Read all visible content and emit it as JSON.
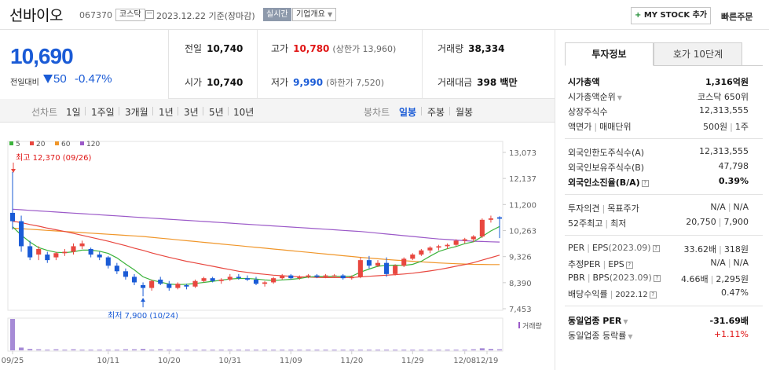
{
  "header": {
    "name": "선바이오",
    "code": "067370",
    "market": "코스닥",
    "date": "2023.12.22 기준(장마감)",
    "live_badge": "실시간",
    "overview_label": "기업개요",
    "mystock_label": "MY STOCK 추가",
    "quick_order": "빠른주문"
  },
  "price": {
    "current": "10,690",
    "diff_label": "전일대비",
    "diff": "50",
    "rate": "-0.47%",
    "color": "#1a5bd6"
  },
  "summary": {
    "prev_label": "전일",
    "prev": "10,740",
    "open_label": "시가",
    "open": "10,740",
    "high_label": "고가",
    "high": "10,780",
    "upper_limit": "(상한가 13,960)",
    "low_label": "저가",
    "low": "9,990",
    "lower_limit": "(하한가 7,520)",
    "volume_label": "거래량",
    "volume": "38,334",
    "amount_label": "거래대금",
    "amount": "398 백만"
  },
  "periods": {
    "line_label": "선차트",
    "line_items": [
      "1일",
      "1주일",
      "3개월",
      "1년",
      "3년",
      "5년",
      "10년"
    ],
    "candle_label": "봉차트",
    "candle_items": [
      "일봉",
      "주봉",
      "월봉"
    ],
    "active_candle": "일봉"
  },
  "side": {
    "tabs": [
      "투자정보",
      "호가 10단계"
    ],
    "market_cap_label": "시가총액",
    "market_cap": "1,316억원",
    "cap_rank_label": "시가총액순위",
    "cap_rank": "코스닥 650위",
    "shares_label": "상장주식수",
    "shares": "12,313,555",
    "par_label": "액면가",
    "unit_label": "매매단위",
    "par": "500원",
    "unit": "1주",
    "foreign_limit_label": "외국인한도주식수(A)",
    "foreign_limit": "12,313,555",
    "foreign_hold_label": "외국인보유주식수(B)",
    "foreign_hold": "47,798",
    "foreign_rate_label": "외국인소진율(B/A)",
    "foreign_rate": "0.39%",
    "opinion_label": "투자의견",
    "target_label": "목표주가",
    "opinion": "N/A",
    "target": "N/A",
    "w52_label": "52주최고",
    "w52_low_label": "최저",
    "w52_high": "20,750",
    "w52_low": "7,900",
    "per_label": "PER",
    "eps_label": "EPS",
    "per_period": "(2023.09)",
    "per": "33.62배",
    "eps": "318원",
    "est_per_label": "추정PER",
    "est_eps_label": "EPS",
    "est_per": "N/A",
    "est_eps": "N/A",
    "pbr_label": "PBR",
    "bps_label": "BPS",
    "pbr_period": "(2023.09)",
    "pbr": "4.66배",
    "bps": "2,295원",
    "div_label": "배당수익률",
    "div_period": "2022.12",
    "div": "0.47%",
    "ind_per_label": "동일업종 PER",
    "ind_per": "-31.69배",
    "ind_rate_label": "동일업종 등락률",
    "ind_rate": "+1.11%"
  },
  "chart_data": {
    "type": "candlestick",
    "legend": [
      {
        "name": "5",
        "color": "#3cb33c"
      },
      {
        "name": "20",
        "color": "#e8473f"
      },
      {
        "name": "60",
        "color": "#f0962a"
      },
      {
        "name": "120",
        "color": "#9b59c8"
      }
    ],
    "y_ticks": [
      "13,073",
      "12,137",
      "11,200",
      "10,263",
      "9,326",
      "8,390",
      "7,453"
    ],
    "ylim": [
      7453,
      13073
    ],
    "x_ticks": [
      "09/25",
      "10/11",
      "10/20",
      "10/31",
      "11/09",
      "11/20",
      "11/29",
      "12/08",
      "12/19"
    ],
    "high_annotation": "최고 12,370 (09/26)",
    "low_annotation": "최저 7,900 (10/24)",
    "volume_label": "거래량",
    "candles": [
      [
        10900,
        12370,
        10300,
        10600
      ],
      [
        10600,
        10800,
        9500,
        9700
      ],
      [
        9700,
        9900,
        9200,
        9300
      ],
      [
        9400,
        9700,
        9200,
        9600
      ],
      [
        9400,
        9500,
        9100,
        9200
      ],
      [
        9300,
        9500,
        9200,
        9450
      ],
      [
        9450,
        9600,
        9350,
        9500
      ],
      [
        9500,
        9800,
        9400,
        9700
      ],
      [
        9700,
        9900,
        9600,
        9800
      ],
      [
        9600,
        9650,
        9300,
        9400
      ],
      [
        9400,
        9500,
        9200,
        9300
      ],
      [
        9300,
        9350,
        8900,
        9000
      ],
      [
        9000,
        9100,
        8700,
        8800
      ],
      [
        8800,
        8900,
        8500,
        8600
      ],
      [
        8600,
        8700,
        8300,
        8400
      ],
      [
        8300,
        8400,
        7900,
        8200
      ],
      [
        8200,
        8500,
        8100,
        8450
      ],
      [
        8500,
        8600,
        8300,
        8350
      ],
      [
        8350,
        8450,
        8100,
        8200
      ],
      [
        8200,
        8400,
        8150,
        8350
      ],
      [
        8300,
        8350,
        8150,
        8250
      ],
      [
        8250,
        8500,
        8200,
        8450
      ],
      [
        8450,
        8600,
        8400,
        8550
      ],
      [
        8550,
        8600,
        8400,
        8450
      ],
      [
        8450,
        8550,
        8350,
        8500
      ],
      [
        8500,
        8700,
        8450,
        8600
      ],
      [
        8600,
        8700,
        8500,
        8550
      ],
      [
        8550,
        8650,
        8450,
        8500
      ],
      [
        8500,
        8600,
        8300,
        8350
      ],
      [
        8350,
        8450,
        8250,
        8400
      ],
      [
        8400,
        8600,
        8350,
        8550
      ],
      [
        8550,
        8700,
        8500,
        8650
      ],
      [
        8650,
        8700,
        8500,
        8550
      ],
      [
        8550,
        8650,
        8500,
        8600
      ],
      [
        8600,
        8700,
        8550,
        8650
      ],
      [
        8650,
        8700,
        8550,
        8600
      ],
      [
        8600,
        8700,
        8550,
        8650
      ],
      [
        8650,
        8700,
        8600,
        8650
      ],
      [
        8650,
        8700,
        8500,
        8550
      ],
      [
        8550,
        8650,
        8500,
        8600
      ],
      [
        8600,
        9300,
        8550,
        9200
      ],
      [
        9200,
        9350,
        8900,
        9000
      ],
      [
        9000,
        9200,
        8950,
        9100
      ],
      [
        9100,
        9300,
        8600,
        8700
      ],
      [
        8700,
        9050,
        8650,
        9000
      ],
      [
        9000,
        9300,
        8950,
        9250
      ],
      [
        9250,
        9450,
        9200,
        9400
      ],
      [
        9400,
        9600,
        9350,
        9550
      ],
      [
        9550,
        9700,
        9450,
        9650
      ],
      [
        9650,
        9750,
        9550,
        9700
      ],
      [
        9700,
        9800,
        9600,
        9750
      ],
      [
        9750,
        9950,
        9700,
        9900
      ],
      [
        9900,
        10000,
        9800,
        9950
      ],
      [
        9950,
        10100,
        9850,
        10050
      ],
      [
        10050,
        10700,
        10000,
        10650
      ],
      [
        10650,
        10800,
        10550,
        10700
      ],
      [
        10740,
        10780,
        9990,
        10690
      ]
    ],
    "ma5": [
      10400,
      10100,
      9850,
      9650,
      9550,
      9480,
      9470,
      9500,
      9560,
      9560,
      9520,
      9440,
      9280,
      9060,
      8850,
      8600,
      8480,
      8410,
      8340,
      8320,
      8330,
      8360,
      8400,
      8440,
      8480,
      8520,
      8540,
      8540,
      8520,
      8490,
      8470,
      8490,
      8510,
      8540,
      8590,
      8610,
      8610,
      8620,
      8620,
      8620,
      8770,
      8880,
      8980,
      9010,
      9020,
      9010,
      9050,
      9160,
      9340,
      9510,
      9610,
      9690,
      9790,
      9860,
      10050,
      10250,
      10410
    ],
    "ma20": [
      10600,
      10550,
      10480,
      10420,
      10350,
      10290,
      10230,
      10160,
      10090,
      10020,
      9950,
      9880,
      9800,
      9720,
      9630,
      9550,
      9460,
      9380,
      9300,
      9230,
      9160,
      9100,
      9040,
      8980,
      8920,
      8860,
      8800,
      8760,
      8720,
      8690,
      8660,
      8640,
      8620,
      8600,
      8590,
      8580,
      8570,
      8570,
      8570,
      8575,
      8600,
      8620,
      8640,
      8660,
      8680,
      8700,
      8730,
      8770,
      8810,
      8860,
      8920,
      8980,
      9040,
      9110,
      9200,
      9290,
      9380
    ],
    "ma60": [
      10350,
      10330,
      10310,
      10290,
      10270,
      10250,
      10230,
      10210,
      10190,
      10170,
      10150,
      10130,
      10110,
      10090,
      10070,
      10050,
      10020,
      9990,
      9960,
      9930,
      9900,
      9870,
      9840,
      9810,
      9780,
      9750,
      9720,
      9690,
      9660,
      9630,
      9600,
      9570,
      9540,
      9510,
      9480,
      9450,
      9420,
      9390,
      9360,
      9330,
      9300,
      9275,
      9250,
      9225,
      9200,
      9180,
      9160,
      9140,
      9120,
      9100,
      9085,
      9070,
      9060,
      9050,
      9045,
      9040,
      9040
    ],
    "ma120": [
      11030,
      11010,
      10990,
      10970,
      10950,
      10930,
      10910,
      10890,
      10870,
      10850,
      10830,
      10810,
      10790,
      10770,
      10750,
      10730,
      10710,
      10690,
      10670,
      10650,
      10630,
      10610,
      10590,
      10570,
      10550,
      10530,
      10510,
      10490,
      10470,
      10450,
      10430,
      10410,
      10390,
      10370,
      10350,
      10330,
      10310,
      10290,
      10270,
      10250,
      10230,
      10200,
      10170,
      10140,
      10110,
      10080,
      10050,
      10020,
      9990,
      9960,
      9940,
      9920,
      9900,
      9880,
      9870,
      9860,
      9850
    ],
    "volumes": [
      90,
      8,
      4,
      3,
      2,
      3,
      2,
      3,
      2,
      2,
      2,
      2,
      2,
      3,
      3,
      4,
      2,
      3,
      2,
      2,
      2,
      2,
      2,
      2,
      2,
      2,
      2,
      2,
      2,
      2,
      2,
      2,
      2,
      2,
      2,
      2,
      2,
      2,
      2,
      2,
      2,
      2,
      2,
      2,
      2,
      2,
      2,
      2,
      2,
      2,
      2,
      2,
      2,
      3,
      6,
      4,
      3
    ]
  }
}
